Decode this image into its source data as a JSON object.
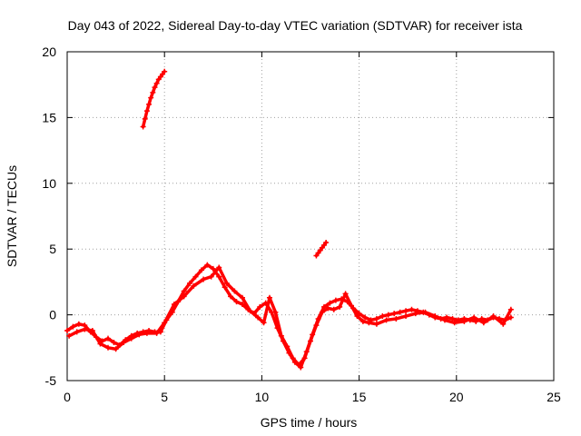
{
  "chart_data": {
    "type": "scatter",
    "title": "Day 043 of 2022, Sidereal Day-to-day VTEC variation (SDTVAR) for receiver ista",
    "xlabel": "GPS time / hours",
    "ylabel": "SDTVAR / TECUs",
    "xlim": [
      0,
      25
    ],
    "ylim": [
      -5,
      20
    ],
    "xticks": [
      0,
      5,
      10,
      15,
      20,
      25
    ],
    "yticks": [
      -5,
      0,
      5,
      10,
      15,
      20
    ],
    "xtick_labels": [
      "0",
      "5",
      "10",
      "15",
      "20",
      "25"
    ],
    "ytick_labels": [
      "-5",
      "0",
      "5",
      "10",
      "15",
      "20"
    ],
    "grid": true,
    "marker": "+",
    "color": "#ff0000",
    "series": [
      {
        "name": "main",
        "x": [
          0.0,
          0.3,
          0.6,
          0.9,
          1.2,
          1.5,
          1.8,
          2.1,
          2.4,
          2.7,
          3.0,
          3.3,
          3.6,
          3.9,
          4.2,
          4.5,
          4.8,
          5.1,
          5.4,
          5.7,
          6.0,
          6.3,
          6.6,
          6.9,
          7.2,
          7.5,
          7.8,
          8.1,
          8.4,
          8.7,
          9.0,
          9.3,
          9.6,
          9.9,
          10.2,
          10.5,
          10.8,
          11.1,
          11.4,
          11.7,
          12.0,
          12.3,
          12.6,
          12.9,
          13.2,
          13.5,
          13.8,
          14.1,
          14.4,
          14.7,
          15.0,
          15.3,
          15.6,
          15.9,
          16.2,
          16.5,
          16.8,
          17.1,
          17.4,
          17.7,
          18.0,
          18.3,
          18.6,
          18.9,
          19.2,
          19.5,
          19.8,
          20.1,
          20.4,
          20.7,
          21.0,
          21.3,
          21.6,
          21.9,
          22.2,
          22.5,
          22.8
        ],
        "y": [
          -1.2,
          -0.9,
          -0.7,
          -0.8,
          -1.3,
          -1.7,
          -2.0,
          -1.8,
          -2.1,
          -2.3,
          -1.9,
          -1.6,
          -1.4,
          -1.3,
          -1.2,
          -1.3,
          -1.3,
          -0.4,
          0.2,
          1.0,
          1.8,
          2.4,
          2.9,
          3.4,
          3.8,
          3.5,
          2.9,
          2.1,
          1.4,
          1.0,
          0.8,
          0.4,
          0.1,
          0.6,
          0.9,
          0.2,
          -1.0,
          -2.0,
          -2.9,
          -3.6,
          -4.0,
          -2.8,
          -1.5,
          -0.3,
          0.6,
          0.9,
          1.1,
          1.2,
          1.0,
          0.5,
          0.1,
          -0.2,
          -0.4,
          -0.3,
          -0.1,
          0.0,
          0.1,
          0.2,
          0.3,
          0.4,
          0.3,
          0.2,
          0.0,
          -0.2,
          -0.3,
          -0.2,
          -0.3,
          -0.4,
          -0.3,
          -0.4,
          -0.5,
          -0.3,
          -0.4,
          -0.2,
          -0.3,
          -0.4,
          -0.2
        ]
      },
      {
        "name": "main-spread",
        "x": [
          0.1,
          0.5,
          0.9,
          1.3,
          1.7,
          2.1,
          2.5,
          2.9,
          3.3,
          3.7,
          4.1,
          4.6,
          5.0,
          5.5,
          6.0,
          6.5,
          7.0,
          7.4,
          7.8,
          8.2,
          8.6,
          9.0,
          9.4,
          9.8,
          10.1,
          10.4,
          10.7,
          11.0,
          11.3,
          11.6,
          11.9,
          12.2,
          12.5,
          12.8,
          13.1,
          13.4,
          13.7,
          14.0,
          14.3,
          14.6,
          14.9,
          15.2,
          15.5,
          15.9,
          16.4,
          16.9,
          17.4,
          17.9,
          18.4,
          18.9,
          19.4,
          19.9,
          20.4,
          20.9,
          21.4,
          21.9,
          22.4,
          22.8
        ],
        "y": [
          -1.6,
          -1.3,
          -1.1,
          -1.2,
          -2.2,
          -2.5,
          -2.6,
          -2.1,
          -1.8,
          -1.5,
          -1.4,
          -1.4,
          -0.6,
          0.8,
          1.4,
          2.2,
          2.7,
          2.9,
          3.6,
          2.4,
          1.8,
          1.3,
          0.3,
          -0.2,
          -0.6,
          1.3,
          0.2,
          -1.6,
          -2.4,
          -3.3,
          -3.8,
          -3.3,
          -2.0,
          -0.8,
          0.2,
          0.5,
          0.4,
          0.6,
          1.6,
          0.7,
          -0.1,
          -0.5,
          -0.6,
          -0.7,
          -0.4,
          -0.3,
          -0.1,
          0.1,
          0.2,
          -0.1,
          -0.4,
          -0.6,
          -0.5,
          -0.2,
          -0.6,
          -0.1,
          -0.7,
          0.4
        ]
      },
      {
        "name": "segment-2",
        "x": [
          3.9,
          4.0,
          4.1,
          4.2,
          4.3,
          4.4,
          4.5,
          4.6,
          4.7,
          4.8,
          4.9,
          5.0
        ],
        "y": [
          14.3,
          14.9,
          15.5,
          16.0,
          16.5,
          16.9,
          17.3,
          17.6,
          17.9,
          18.1,
          18.3,
          18.5
        ]
      },
      {
        "name": "segment-3",
        "x": [
          12.8,
          12.9,
          13.0,
          13.1,
          13.2,
          13.3
        ],
        "y": [
          4.5,
          4.7,
          4.9,
          5.1,
          5.3,
          5.5
        ]
      }
    ]
  }
}
